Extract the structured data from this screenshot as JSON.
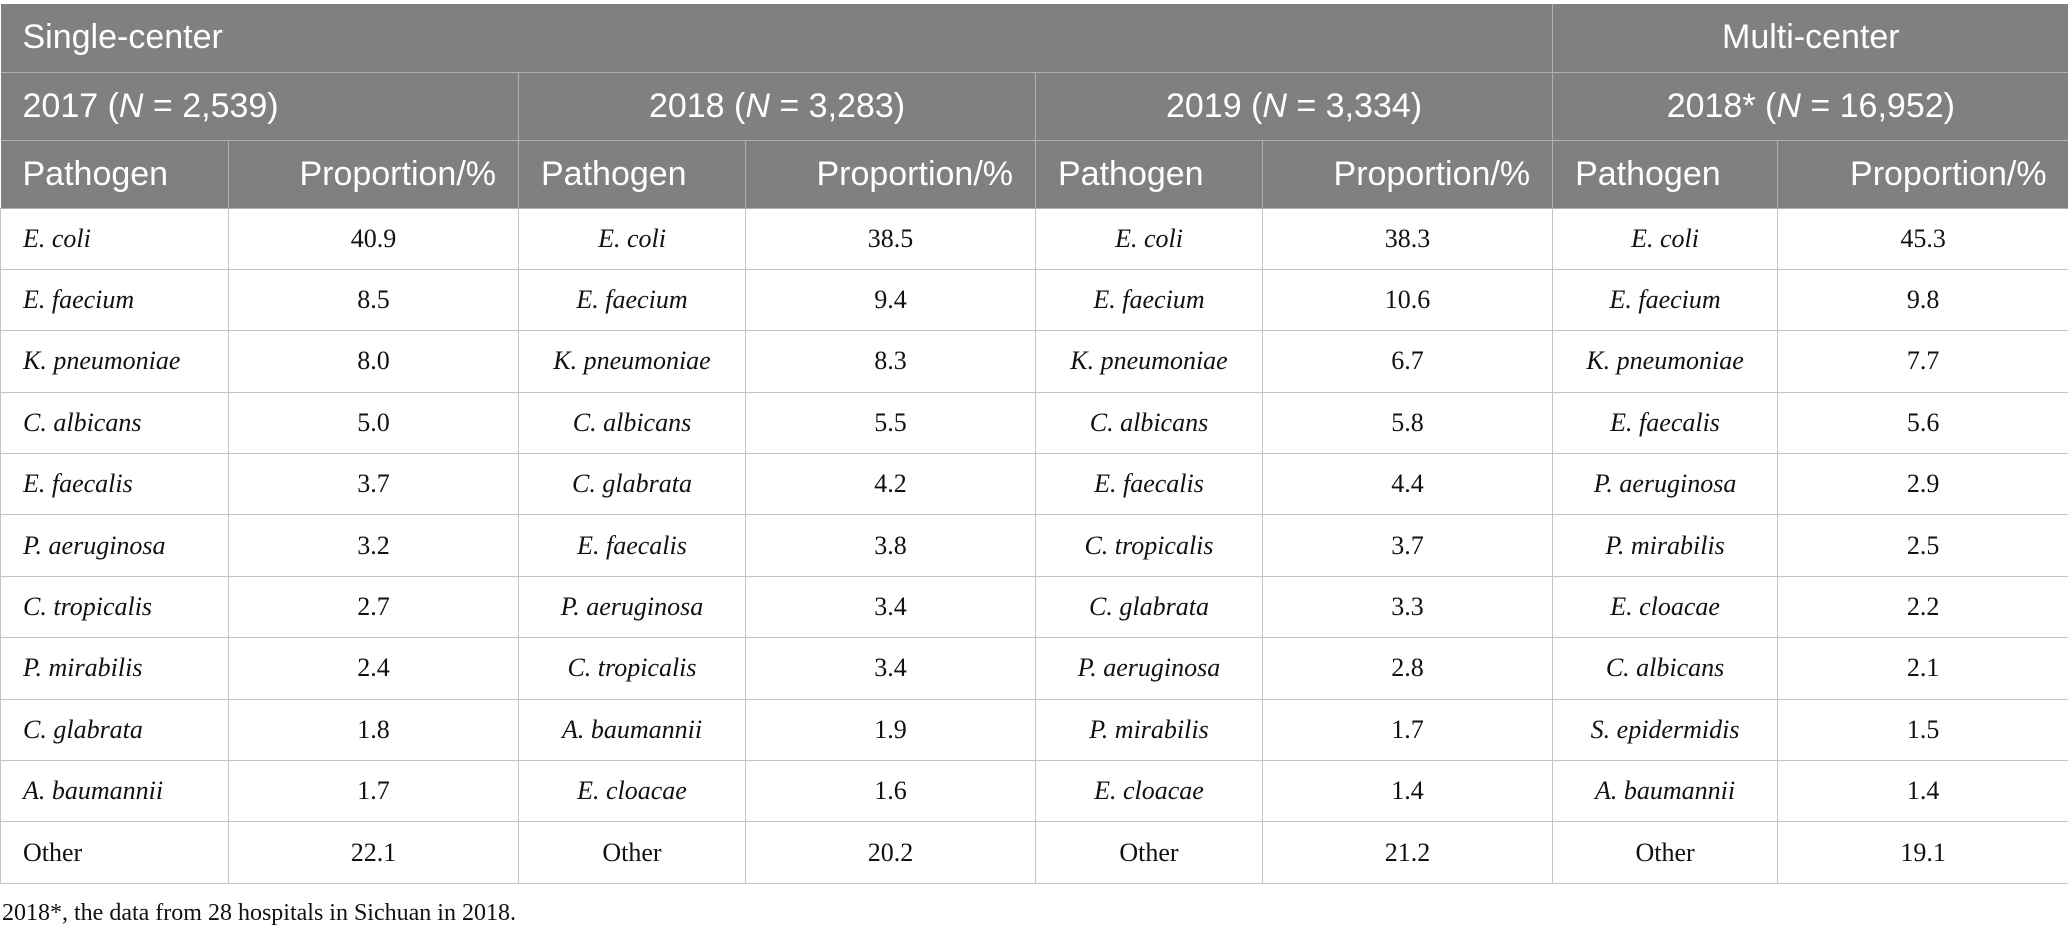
{
  "header": {
    "single_center": "Single-center",
    "multi_center": "Multi-center"
  },
  "groups": [
    {
      "pre": "2017 (",
      "n_symbol": "N",
      "post": " = 2,539)"
    },
    {
      "pre": "2018 (",
      "n_symbol": "N",
      "post": " = 3,283)"
    },
    {
      "pre": "2019 (",
      "n_symbol": "N",
      "post": " = 3,334)"
    },
    {
      "pre": "2018* (",
      "n_symbol": "N",
      "post": " = 16,952)"
    }
  ],
  "columns": {
    "pathogen": "Pathogen",
    "proportion": "Proportion/%"
  },
  "rows": [
    [
      {
        "name": "E. coli",
        "italic": true,
        "value": "40.9"
      },
      {
        "name": "E. coli",
        "italic": true,
        "value": "38.5"
      },
      {
        "name": "E. coli",
        "italic": true,
        "value": "38.3"
      },
      {
        "name": "E. coli",
        "italic": true,
        "value": "45.3"
      }
    ],
    [
      {
        "name": "E. faecium",
        "italic": true,
        "value": "8.5"
      },
      {
        "name": "E. faecium",
        "italic": true,
        "value": "9.4"
      },
      {
        "name": "E. faecium",
        "italic": true,
        "value": "10.6"
      },
      {
        "name": "E. faecium",
        "italic": true,
        "value": "9.8"
      }
    ],
    [
      {
        "name": "K. pneumoniae",
        "italic": true,
        "value": "8.0"
      },
      {
        "name": "K. pneumoniae",
        "italic": true,
        "value": "8.3"
      },
      {
        "name": "K. pneumoniae",
        "italic": true,
        "value": "6.7"
      },
      {
        "name": "K. pneumoniae",
        "italic": true,
        "value": "7.7"
      }
    ],
    [
      {
        "name": "C. albicans",
        "italic": true,
        "value": "5.0"
      },
      {
        "name": "C. albicans",
        "italic": true,
        "value": "5.5"
      },
      {
        "name": "C. albicans",
        "italic": true,
        "value": "5.8"
      },
      {
        "name": "E. faecalis",
        "italic": true,
        "value": "5.6"
      }
    ],
    [
      {
        "name": "E. faecalis",
        "italic": true,
        "value": "3.7"
      },
      {
        "name": "C. glabrata",
        "italic": true,
        "value": "4.2"
      },
      {
        "name": "E. faecalis",
        "italic": true,
        "value": "4.4"
      },
      {
        "name": "P. aeruginosa",
        "italic": true,
        "value": "2.9"
      }
    ],
    [
      {
        "name": "P. aeruginosa",
        "italic": true,
        "value": "3.2"
      },
      {
        "name": "E. faecalis",
        "italic": true,
        "value": "3.8"
      },
      {
        "name": "C. tropicalis",
        "italic": true,
        "value": "3.7"
      },
      {
        "name": "P. mirabilis",
        "italic": true,
        "value": "2.5"
      }
    ],
    [
      {
        "name": "C. tropicalis",
        "italic": true,
        "value": "2.7"
      },
      {
        "name": "P. aeruginosa",
        "italic": true,
        "value": "3.4"
      },
      {
        "name": "C. glabrata",
        "italic": true,
        "value": "3.3"
      },
      {
        "name": "E. cloacae",
        "italic": true,
        "value": "2.2"
      }
    ],
    [
      {
        "name": "P. mirabilis",
        "italic": true,
        "value": "2.4"
      },
      {
        "name": "C. tropicalis",
        "italic": true,
        "value": "3.4"
      },
      {
        "name": "P. aeruginosa",
        "italic": true,
        "value": "2.8"
      },
      {
        "name": "C. albicans",
        "italic": true,
        "value": "2.1"
      }
    ],
    [
      {
        "name": "C. glabrata",
        "italic": true,
        "value": "1.8"
      },
      {
        "name": "A. baumannii",
        "italic": true,
        "value": "1.9"
      },
      {
        "name": "P. mirabilis",
        "italic": true,
        "value": "1.7"
      },
      {
        "name": "S. epidermidis",
        "italic": true,
        "value": "1.5"
      }
    ],
    [
      {
        "name": "A. baumannii",
        "italic": true,
        "value": "1.7"
      },
      {
        "name": "E. cloacae",
        "italic": true,
        "value": "1.6"
      },
      {
        "name": "E. cloacae",
        "italic": true,
        "value": "1.4"
      },
      {
        "name": "A. baumannii",
        "italic": true,
        "value": "1.4"
      }
    ],
    [
      {
        "name": "Other",
        "italic": false,
        "value": "22.1"
      },
      {
        "name": "Other",
        "italic": false,
        "value": "20.2"
      },
      {
        "name": "Other",
        "italic": false,
        "value": "21.2"
      },
      {
        "name": "Other",
        "italic": false,
        "value": "19.1"
      }
    ]
  ],
  "footnote": "2018*, the data from 28 hospitals in Sichuan in 2018."
}
